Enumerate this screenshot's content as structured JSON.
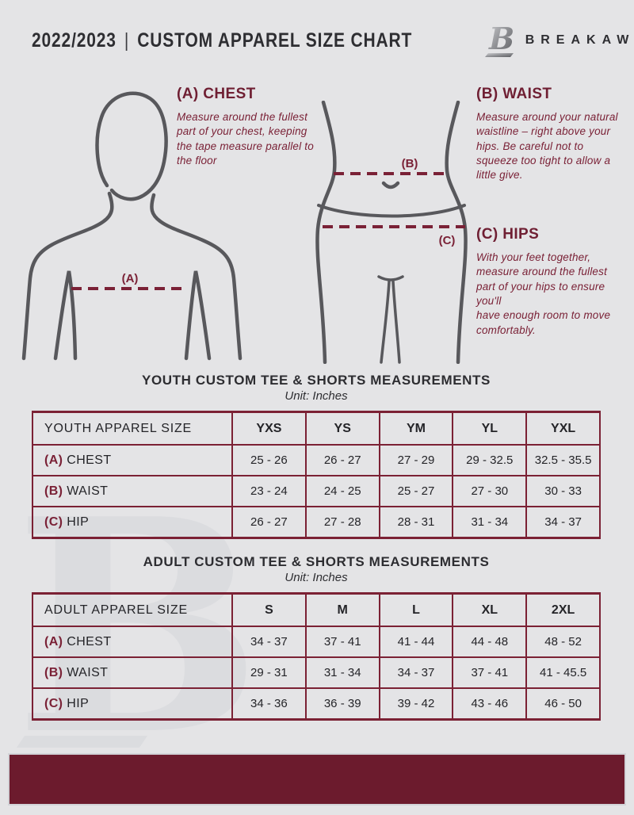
{
  "page": {
    "background": "#e4e4e6",
    "accent": "#7a2136",
    "footer_color": "#6c1b2d"
  },
  "header": {
    "year": "2022/2023",
    "divider": "|",
    "title": "CUSTOM APPAREL SIZE CHART",
    "brand": "BREAKAWAY",
    "logo_letter": "B"
  },
  "guides": {
    "chest": {
      "heading": "(A) CHEST",
      "marker": "(A)",
      "body": "Measure around the fullest part of your chest, keeping the tape measure parallel to the floor"
    },
    "waist": {
      "heading": "(B) WAIST",
      "marker": "(B)",
      "body": "Measure around your natural waistline – right above your hips. Be careful not to squeeze too tight to allow a little give."
    },
    "hips": {
      "heading": "(C) HIPS",
      "marker": "(C)",
      "body": "With your feet together, measure around the fullest part of your hips to ensure you'll\nhave enough room to move comfortably."
    }
  },
  "tables": [
    {
      "title": "YOUTH CUSTOM TEE & SHORTS MEASUREMENTS",
      "unit": "Unit: Inches",
      "size_header": "YOUTH APPAREL SIZE",
      "sizes": [
        "YXS",
        "YS",
        "YM",
        "YL",
        "YXL"
      ],
      "rows": [
        {
          "marker": "(A)",
          "label": "CHEST",
          "values": [
            "25 - 26",
            "26 - 27",
            "27 - 29",
            "29 - 32.5",
            "32.5 - 35.5"
          ]
        },
        {
          "marker": "(B)",
          "label": "WAIST",
          "values": [
            "23 - 24",
            "24 - 25",
            "25 - 27",
            "27 - 30",
            "30 - 33"
          ]
        },
        {
          "marker": "(C)",
          "label": "HIP",
          "values": [
            "26 - 27",
            "27 - 28",
            "28 - 31",
            "31 - 34",
            "34 - 37"
          ]
        }
      ]
    },
    {
      "title": "ADULT CUSTOM TEE & SHORTS MEASUREMENTS",
      "unit": "Unit: Inches",
      "size_header": "ADULT APPAREL SIZE",
      "sizes": [
        "S",
        "M",
        "L",
        "XL",
        "2XL"
      ],
      "rows": [
        {
          "marker": "(A)",
          "label": "CHEST",
          "values": [
            "34 - 37",
            "37 - 41",
            "41 - 44",
            "44 - 48",
            "48 - 52"
          ]
        },
        {
          "marker": "(B)",
          "label": "WAIST",
          "values": [
            "29 - 31",
            "31 - 34",
            "34 - 37",
            "37 - 41",
            "41 - 45.5"
          ]
        },
        {
          "marker": "(C)",
          "label": "HIP",
          "values": [
            "34 - 36",
            "36 - 39",
            "39 - 42",
            "43 - 46",
            "46 - 50"
          ]
        }
      ]
    }
  ],
  "watermark": {
    "letter": "B"
  }
}
